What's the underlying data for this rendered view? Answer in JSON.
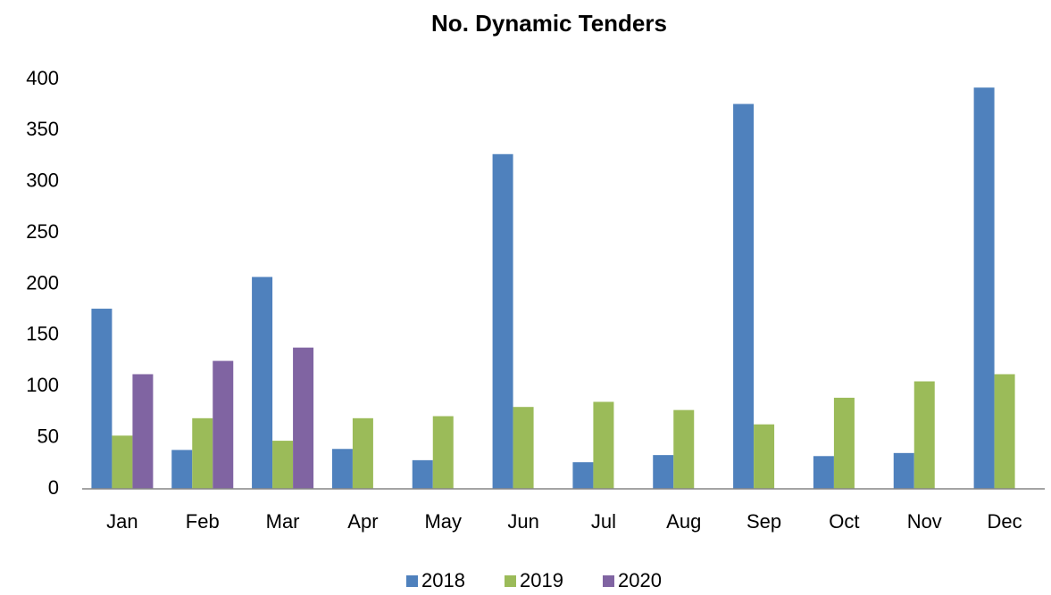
{
  "chart_data": {
    "type": "bar",
    "title": "No. Dynamic Tenders",
    "categories": [
      "Jan",
      "Feb",
      "Mar",
      "Apr",
      "May",
      "Jun",
      "Jul",
      "Aug",
      "Sep",
      "Oct",
      "Nov",
      "Dec"
    ],
    "series": [
      {
        "name": "2018",
        "color": "#4f81bd",
        "values": [
          176,
          38,
          207,
          39,
          28,
          327,
          26,
          33,
          376,
          32,
          35,
          392
        ]
      },
      {
        "name": "2019",
        "color": "#9bbb59",
        "values": [
          52,
          69,
          47,
          69,
          71,
          80,
          85,
          77,
          63,
          89,
          105,
          112
        ]
      },
      {
        "name": "2020",
        "color": "#8064a2",
        "values": [
          112,
          125,
          138,
          null,
          null,
          null,
          null,
          null,
          null,
          null,
          null,
          null
        ]
      }
    ],
    "ylim": [
      0,
      400
    ],
    "yticks": [
      0,
      50,
      100,
      150,
      200,
      250,
      300,
      350,
      400
    ],
    "legend": "bottom"
  }
}
